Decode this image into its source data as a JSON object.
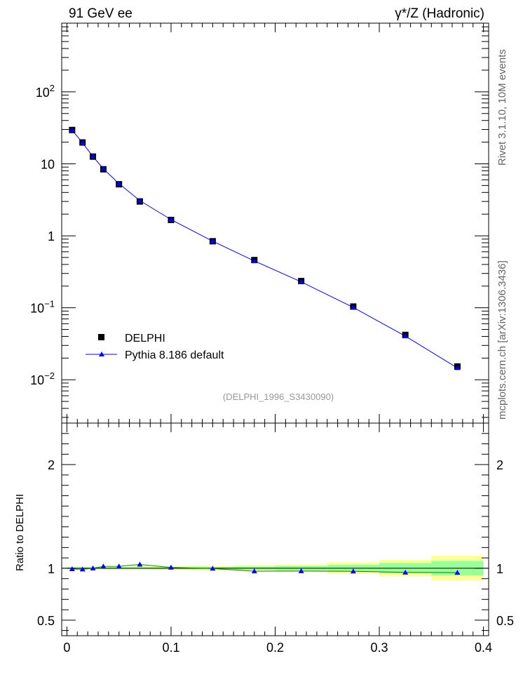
{
  "header": {
    "left": "91 GeV ee",
    "right": "γ*/Z (Hadronic)"
  },
  "side_labels": {
    "rivet": "Rivet 3.1.10, 10M events",
    "mcplots": "mcplots.cern.ch [arXiv:1306.3436]"
  },
  "ratio_ylabel": "Ratio to DELPHI",
  "watermark": "(DELPHI_1996_S3430090)",
  "colors": {
    "data_marker": "#000000",
    "mc_line": "#0000ff",
    "band_stat": "#99ff99",
    "band_total": "#ffff99",
    "ratio_mc_line": "#008800"
  },
  "chart_data": [
    {
      "type": "scatter",
      "scale_y": "log",
      "xlim": [
        -0.005,
        0.405
      ],
      "ylim": [
        0.0025,
        900
      ],
      "y_tick_labels": [
        "10^{-2}",
        "10^{-1}",
        "1",
        "10",
        "10^{2}"
      ],
      "legend": {
        "position": "lower-left",
        "entries": [
          "DELPHI",
          "Pythia 8.186 default"
        ]
      },
      "series": [
        {
          "name": "DELPHI",
          "marker": "square",
          "x": [
            0.005,
            0.015,
            0.025,
            0.035,
            0.05,
            0.07,
            0.1,
            0.14,
            0.18,
            0.225,
            0.275,
            0.325,
            0.375
          ],
          "y": [
            29.5,
            19.8,
            12.6,
            8.4,
            5.2,
            3.0,
            1.66,
            0.84,
            0.46,
            0.235,
            0.104,
            0.042,
            0.0153
          ]
        },
        {
          "name": "Pythia 8.186 default",
          "marker": "triangle",
          "x": [
            0.005,
            0.015,
            0.025,
            0.035,
            0.05,
            0.07,
            0.1,
            0.14,
            0.18,
            0.225,
            0.275,
            0.325,
            0.375
          ],
          "y": [
            29.3,
            19.6,
            12.6,
            8.55,
            5.3,
            3.08,
            1.68,
            0.84,
            0.447,
            0.229,
            0.101,
            0.0403,
            0.0146
          ]
        }
      ]
    },
    {
      "type": "line",
      "ylabel": "Ratio to DELPHI",
      "xlim": [
        -0.005,
        0.405
      ],
      "ylim": [
        0.35,
        2.4
      ],
      "x_tick_labels": [
        "0",
        "0.1",
        "0.2",
        "0.3",
        "0.4"
      ],
      "y_tick_labels": [
        "0.5",
        "1",
        "2"
      ],
      "bins": [
        {
          "lo": 0.0,
          "hi": 0.01,
          "stat": 0.008,
          "total": 0.012
        },
        {
          "lo": 0.01,
          "hi": 0.02,
          "stat": 0.008,
          "total": 0.012
        },
        {
          "lo": 0.02,
          "hi": 0.03,
          "stat": 0.008,
          "total": 0.012
        },
        {
          "lo": 0.03,
          "hi": 0.04,
          "stat": 0.008,
          "total": 0.013
        },
        {
          "lo": 0.04,
          "hi": 0.06,
          "stat": 0.009,
          "total": 0.014
        },
        {
          "lo": 0.06,
          "hi": 0.08,
          "stat": 0.009,
          "total": 0.015
        },
        {
          "lo": 0.08,
          "hi": 0.12,
          "stat": 0.01,
          "total": 0.018
        },
        {
          "lo": 0.12,
          "hi": 0.16,
          "stat": 0.012,
          "total": 0.022
        },
        {
          "lo": 0.16,
          "hi": 0.2,
          "stat": 0.016,
          "total": 0.028
        },
        {
          "lo": 0.2,
          "hi": 0.25,
          "stat": 0.022,
          "total": 0.036
        },
        {
          "lo": 0.25,
          "hi": 0.3,
          "stat": 0.033,
          "total": 0.055
        },
        {
          "lo": 0.3,
          "hi": 0.35,
          "stat": 0.05,
          "total": 0.08
        },
        {
          "lo": 0.35,
          "hi": 0.4,
          "stat": 0.07,
          "total": 0.12
        }
      ],
      "series": [
        {
          "name": "Pythia 8.186 default",
          "x": [
            0.005,
            0.015,
            0.025,
            0.035,
            0.05,
            0.07,
            0.1,
            0.14,
            0.18,
            0.225,
            0.275,
            0.325,
            0.375
          ],
          "y": [
            0.993,
            0.99,
            1.0,
            1.018,
            1.019,
            1.037,
            1.008,
            0.998,
            0.972,
            0.973,
            0.971,
            0.96,
            0.958
          ]
        }
      ]
    }
  ]
}
